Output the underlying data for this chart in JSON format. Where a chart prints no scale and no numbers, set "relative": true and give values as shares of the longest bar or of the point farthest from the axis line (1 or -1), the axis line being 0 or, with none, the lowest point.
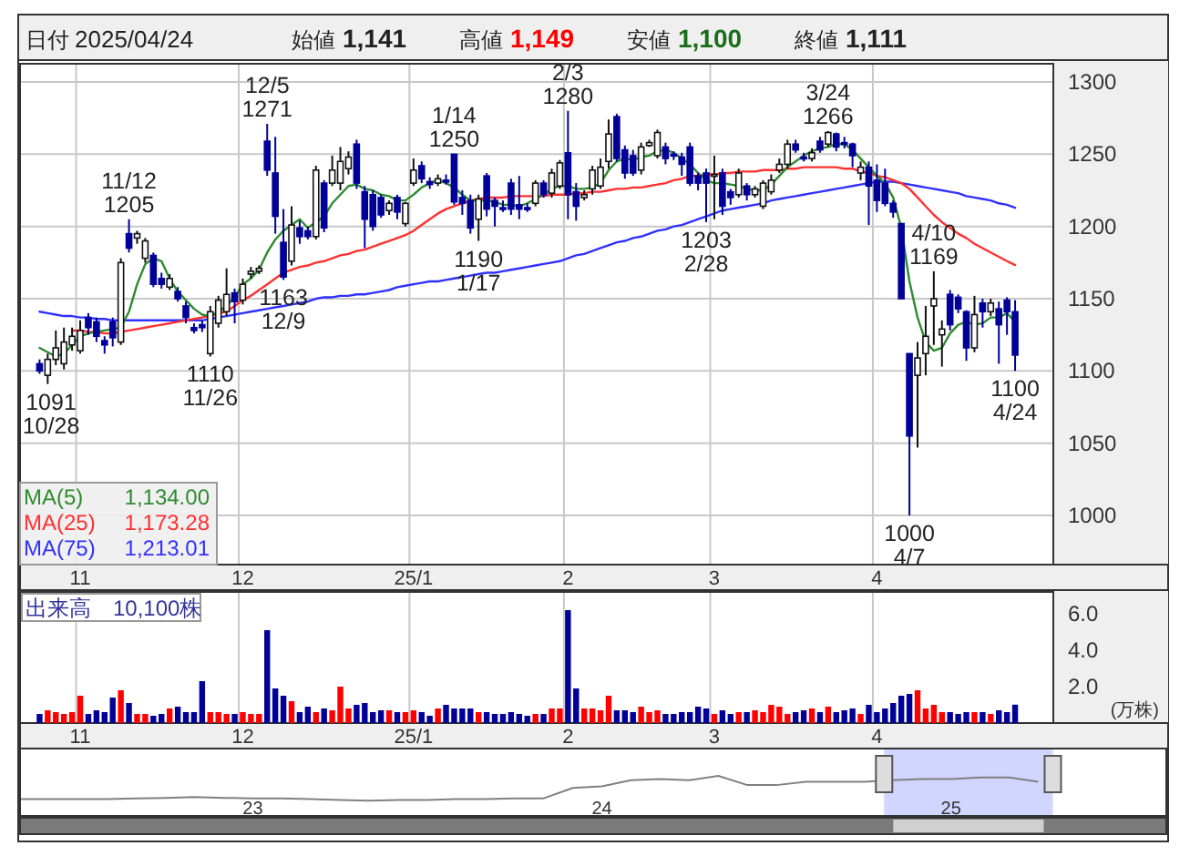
{
  "chart_data": [
    {
      "type": "candlestick",
      "title": "日付 2025/04/24 始値 1,141 高値 1,149 安値 1,100 終値 1,111",
      "categories": [
        null,
        null,
        null,
        null,
        null,
        "11",
        null,
        null,
        null,
        null,
        null,
        null,
        null,
        null,
        null,
        null,
        null,
        null,
        null,
        null,
        null,
        null,
        null,
        null,
        null,
        "12",
        null,
        null,
        null,
        null,
        null,
        null,
        null,
        null,
        null,
        null,
        null,
        null,
        null,
        null,
        null,
        null,
        null,
        null,
        null,
        null,
        "25/1",
        null,
        null,
        null,
        null,
        null,
        null,
        null,
        null,
        null,
        null,
        null,
        null,
        null,
        null,
        null,
        null,
        null,
        null,
        "2",
        null,
        null,
        null,
        null,
        null,
        null,
        null,
        null,
        null,
        null,
        null,
        null,
        null,
        null,
        null,
        null,
        null,
        "3",
        null,
        null,
        null,
        null,
        null,
        null,
        null,
        null,
        null,
        null,
        null,
        null,
        null,
        null,
        null,
        null,
        null,
        null,
        null,
        "4",
        null,
        null,
        null,
        null,
        null,
        null,
        null,
        null,
        null,
        null,
        null,
        null,
        null,
        null,
        null,
        null,
        null
      ],
      "ohlc": [
        [
          1105,
          1108,
          1098,
          1100
        ],
        [
          1097,
          1112,
          1091,
          1108
        ],
        [
          1108,
          1128,
          1104,
          1116
        ],
        [
          1105,
          1130,
          1101,
          1120
        ],
        [
          1118,
          1130,
          1114,
          1124
        ],
        [
          1114,
          1135,
          1112,
          1128
        ],
        [
          1137,
          1140,
          1125,
          1130
        ],
        [
          1134,
          1137,
          1120,
          1124
        ],
        [
          1121,
          1124,
          1112,
          1118
        ],
        [
          1134,
          1137,
          1117,
          1123
        ],
        [
          1120,
          1178,
          1118,
          1175
        ],
        [
          1195,
          1205,
          1182,
          1185
        ],
        [
          1192,
          1197,
          1188,
          1195
        ],
        [
          1178,
          1192,
          1175,
          1190
        ],
        [
          1180,
          1182,
          1158,
          1160
        ],
        [
          1164,
          1168,
          1157,
          1160
        ],
        [
          1158,
          1167,
          1156,
          1164
        ],
        [
          1155,
          1158,
          1148,
          1150
        ],
        [
          1145,
          1148,
          1133,
          1137
        ],
        [
          1130,
          1133,
          1126,
          1128
        ],
        [
          1132,
          1135,
          1127,
          1130
        ],
        [
          1112,
          1145,
          1110,
          1141
        ],
        [
          1133,
          1152,
          1130,
          1149
        ],
        [
          1141,
          1171,
          1138,
          1153
        ],
        [
          1154,
          1157,
          1133,
          1148
        ],
        [
          1149,
          1164,
          1146,
          1160
        ],
        [
          1167,
          1172,
          1164,
          1169
        ],
        [
          1169,
          1173,
          1167,
          1171
        ],
        [
          1259,
          1271,
          1235,
          1239
        ],
        [
          1237,
          1262,
          1195,
          1207
        ],
        [
          1189,
          1212,
          1163,
          1165
        ],
        [
          1176,
          1214,
          1173,
          1201
        ],
        [
          1199,
          1204,
          1188,
          1193
        ],
        [
          1197,
          1200,
          1191,
          1193
        ],
        [
          1193,
          1242,
          1191,
          1239
        ],
        [
          1230,
          1232,
          1196,
          1199
        ],
        [
          1230,
          1249,
          1228,
          1239
        ],
        [
          1230,
          1255,
          1225,
          1245
        ],
        [
          1240,
          1252,
          1236,
          1248
        ],
        [
          1257,
          1260,
          1226,
          1230
        ],
        [
          1224,
          1228,
          1185,
          1205
        ],
        [
          1222,
          1225,
          1197,
          1200
        ],
        [
          1220,
          1222,
          1206,
          1208
        ],
        [
          1211,
          1218,
          1208,
          1216
        ],
        [
          1220,
          1222,
          1205,
          1210
        ],
        [
          1202,
          1217,
          1200,
          1216
        ],
        [
          1230,
          1247,
          1228,
          1239
        ],
        [
          1242,
          1245,
          1230,
          1233
        ],
        [
          1231,
          1234,
          1226,
          1229
        ],
        [
          1230,
          1236,
          1228,
          1233
        ],
        [
          1232,
          1236,
          1229,
          1231
        ],
        [
          1250,
          1250,
          1215,
          1217
        ],
        [
          1220,
          1225,
          1208,
          1216
        ],
        [
          1218,
          1222,
          1195,
          1199
        ],
        [
          1205,
          1222,
          1190,
          1219
        ],
        [
          1235,
          1237,
          1207,
          1212
        ],
        [
          1218,
          1220,
          1200,
          1214
        ],
        [
          1213,
          1218,
          1210,
          1212
        ],
        [
          1230,
          1233,
          1208,
          1212
        ],
        [
          1215,
          1235,
          1205,
          1212
        ],
        [
          1213,
          1216,
          1210,
          1212
        ],
        [
          1216,
          1232,
          1214,
          1230
        ],
        [
          1230,
          1232,
          1220,
          1222
        ],
        [
          1223,
          1240,
          1220,
          1237
        ],
        [
          1228,
          1246,
          1226,
          1244
        ],
        [
          1251,
          1280,
          1205,
          1222
        ],
        [
          1224,
          1230,
          1204,
          1214
        ],
        [
          1220,
          1225,
          1218,
          1222
        ],
        [
          1226,
          1242,
          1222,
          1239
        ],
        [
          1228,
          1247,
          1226,
          1241
        ],
        [
          1245,
          1274,
          1240,
          1264
        ],
        [
          1276,
          1278,
          1245,
          1247
        ],
        [
          1253,
          1256,
          1233,
          1237
        ],
        [
          1249,
          1253,
          1235,
          1237
        ],
        [
          1239,
          1258,
          1236,
          1255
        ],
        [
          1256,
          1260,
          1255,
          1258
        ],
        [
          1249,
          1267,
          1247,
          1265
        ],
        [
          1255,
          1258,
          1243,
          1247
        ],
        [
          1250,
          1252,
          1246,
          1249
        ],
        [
          1248,
          1251,
          1235,
          1243
        ],
        [
          1255,
          1258,
          1228,
          1230
        ],
        [
          1235,
          1237,
          1225,
          1230
        ],
        [
          1237,
          1240,
          1203,
          1230
        ],
        [
          1235,
          1249,
          1205,
          1236
        ],
        [
          1237,
          1240,
          1208,
          1214
        ],
        [
          1224,
          1226,
          1215,
          1220
        ],
        [
          1222,
          1240,
          1220,
          1237
        ],
        [
          1228,
          1230,
          1218,
          1222
        ],
        [
          1222,
          1228,
          1220,
          1226
        ],
        [
          1214,
          1232,
          1212,
          1230
        ],
        [
          1224,
          1236,
          1222,
          1232
        ],
        [
          1239,
          1247,
          1237,
          1243
        ],
        [
          1243,
          1260,
          1240,
          1257
        ],
        [
          1257,
          1260,
          1251,
          1253
        ],
        [
          1248,
          1251,
          1245,
          1247
        ],
        [
          1247,
          1254,
          1245,
          1251
        ],
        [
          1259,
          1262,
          1251,
          1253
        ],
        [
          1257,
          1266,
          1255,
          1265
        ],
        [
          1264,
          1265,
          1252,
          1255
        ],
        [
          1258,
          1262,
          1254,
          1257
        ],
        [
          1257,
          1258,
          1241,
          1249
        ],
        [
          1237,
          1245,
          1232,
          1241
        ],
        [
          1241,
          1245,
          1201,
          1228
        ],
        [
          1232,
          1243,
          1210,
          1218
        ],
        [
          1230,
          1240,
          1214,
          1216
        ],
        [
          1216,
          1218,
          1206,
          1210
        ],
        [
          1202,
          1202,
          1150,
          1150
        ],
        [
          1112,
          1112,
          1000,
          1055
        ],
        [
          1097,
          1120,
          1047,
          1109
        ],
        [
          1112,
          1145,
          1097,
          1124
        ],
        [
          1145,
          1169,
          1118,
          1150
        ],
        [
          1125,
          1135,
          1103,
          1129
        ],
        [
          1153,
          1156,
          1128,
          1132
        ],
        [
          1151,
          1153,
          1140,
          1143
        ],
        [
          1141,
          1142,
          1107,
          1116
        ],
        [
          1116,
          1152,
          1113,
          1139
        ],
        [
          1147,
          1150,
          1130,
          1141
        ],
        [
          1141,
          1150,
          1138,
          1147
        ],
        [
          1143,
          1148,
          1105,
          1132
        ],
        [
          1149,
          1151,
          1125,
          1141
        ],
        [
          1141,
          1149,
          1100,
          1111
        ]
      ],
      "series": [
        {
          "name": "MA(5)",
          "type": "line",
          "color": "#2e8b2e",
          "values": [
            1116,
            1113,
            1110,
            1112,
            1118,
            1124,
            1126,
            1127,
            1128,
            1129,
            1130,
            1141,
            1160,
            1174,
            1178,
            1176,
            1164,
            1155,
            1149,
            1143,
            1139,
            1138,
            1141,
            1145,
            1151,
            1160,
            1164,
            1170,
            1182,
            1191,
            1197,
            1201,
            1205,
            1199,
            1203,
            1207,
            1216,
            1222,
            1228,
            1229,
            1226,
            1225,
            1222,
            1221,
            1218,
            1218,
            1222,
            1227,
            1230,
            1232,
            1230,
            1227,
            1222,
            1218,
            1218,
            1218,
            1217,
            1215,
            1215,
            1214,
            1216,
            1219,
            1222,
            1226,
            1228,
            1228,
            1226,
            1226,
            1227,
            1230,
            1239,
            1245,
            1247,
            1246,
            1248,
            1249,
            1252,
            1253,
            1251,
            1247,
            1243,
            1237,
            1232,
            1230,
            1230,
            1229,
            1228,
            1226,
            1225,
            1225,
            1229,
            1235,
            1241,
            1245,
            1249,
            1252,
            1254,
            1255,
            1257,
            1257,
            1253,
            1247,
            1241,
            1235,
            1230,
            1220,
            1199,
            1162,
            1137,
            1120,
            1114,
            1116,
            1126,
            1132,
            1134,
            1132,
            1133,
            1137,
            1137,
            1140,
            1134
          ]
        },
        {
          "name": "MA(25)",
          "type": "line",
          "color": "#ff3030",
          "values": [
            null,
            null,
            null,
            null,
            1128,
            1128,
            1127,
            1127,
            1126,
            1126,
            1127,
            1128,
            1129,
            1130,
            1131,
            1132,
            1133,
            1134,
            1135,
            1136,
            1137,
            1138,
            1140,
            1141,
            1145,
            1149,
            1152,
            1156,
            1160,
            1164,
            1168,
            1170,
            1172,
            1173,
            1175,
            1176,
            1178,
            1180,
            1181,
            1183,
            1184,
            1186,
            1188,
            1190,
            1192,
            1194,
            1197,
            1201,
            1205,
            1209,
            1212,
            1214,
            1216,
            1218,
            1219,
            1220,
            1220,
            1220,
            1221,
            1221,
            1221,
            1221,
            1221,
            1222,
            1222,
            1222,
            1223,
            1223,
            1224,
            1224,
            1225,
            1226,
            1226,
            1227,
            1227,
            1228,
            1229,
            1230,
            1232,
            1233,
            1235,
            1235,
            1236,
            1236,
            1237,
            1237,
            1238,
            1238,
            1238,
            1239,
            1239,
            1239,
            1240,
            1240,
            1241,
            1241,
            1241,
            1241,
            1241,
            1240,
            1240,
            1238,
            1237,
            1235,
            1234,
            1232,
            1230,
            1226,
            1220,
            1214,
            1208,
            1203,
            1199,
            1195,
            1192,
            1188,
            1185,
            1182,
            1179,
            1176,
            1173.28
          ]
        },
        {
          "name": "MA(75)",
          "type": "line",
          "color": "#3030ff",
          "values": [
            1141,
            1140,
            1139,
            1138,
            1138,
            1137,
            1137,
            1136,
            1136,
            1135,
            1135,
            1135,
            1135,
            1135,
            1135,
            1135,
            1135,
            1135,
            1135,
            1135,
            1135,
            1136,
            1137,
            1138,
            1139,
            1140,
            1141,
            1142,
            1143,
            1144,
            1145,
            1146,
            1147,
            1148,
            1150,
            1151,
            1151,
            1152,
            1152,
            1153,
            1153,
            1154,
            1155,
            1156,
            1158,
            1159,
            1160,
            1161,
            1162,
            1162,
            1163,
            1164,
            1165,
            1166,
            1167,
            1168,
            1168,
            1169,
            1170,
            1171,
            1172,
            1173,
            1174,
            1175,
            1176,
            1178,
            1180,
            1181,
            1183,
            1185,
            1187,
            1189,
            1190,
            1192,
            1193,
            1195,
            1197,
            1198,
            1200,
            1201,
            1203,
            1205,
            1207,
            1209,
            1211,
            1212,
            1213,
            1214,
            1215,
            1216,
            1218,
            1219,
            1220,
            1221,
            1222,
            1223,
            1224,
            1225,
            1226,
            1227,
            1228,
            1229,
            1230,
            1231,
            1231,
            1231,
            1230,
            1229,
            1228,
            1227,
            1226,
            1225,
            1224,
            1223,
            1221,
            1220,
            1219,
            1218,
            1216,
            1215,
            1213.01
          ]
        }
      ],
      "ylim": [
        966,
        1312.6
      ],
      "yticks": [
        1000,
        1050,
        1100,
        1150,
        1200,
        1250,
        1300
      ],
      "grid": true,
      "legend": "bottom left",
      "annotations": [
        {
          "text": "1091\n10/28",
          "y": 1091
        },
        {
          "text": "11/12\n1205",
          "y": 1205
        },
        {
          "text": "1110\n11/26",
          "y": 1110
        },
        {
          "text": "12/5\n1271",
          "y": 1271
        },
        {
          "text": "1163\n12/9",
          "y": 1163
        },
        {
          "text": "1/14\n1250",
          "y": 1250
        },
        {
          "text": "1190\n1/17",
          "y": 1190
        },
        {
          "text": "2/3\n1280",
          "y": 1280
        },
        {
          "text": "1203\n2/28",
          "y": 1203
        },
        {
          "text": "3/24\n1266",
          "y": 1266
        },
        {
          "text": "1000\n4/7",
          "y": 1000
        },
        {
          "text": "4/10\n1169",
          "y": 1169
        },
        {
          "text": "1100\n4/24",
          "y": 1100
        },
        "1,134.00",
        "1,173.28",
        "1,213.01"
      ]
    },
    {
      "type": "bar",
      "title": "出来高　10,100株",
      "ylabel": "(万株)",
      "categories": [
        null,
        null,
        null,
        null,
        null,
        "11",
        null,
        null,
        null,
        null,
        null,
        null,
        null,
        null,
        null,
        null,
        null,
        null,
        null,
        null,
        null,
        null,
        null,
        null,
        null,
        "12",
        null,
        null,
        null,
        null,
        null,
        null,
        null,
        null,
        null,
        null,
        null,
        null,
        null,
        null,
        null,
        null,
        null,
        null,
        null,
        null,
        "25/1",
        null,
        null,
        null,
        null,
        null,
        null,
        null,
        null,
        null,
        null,
        null,
        null,
        null,
        null,
        null,
        null,
        null,
        null,
        "2",
        null,
        null,
        null,
        null,
        null,
        null,
        null,
        null,
        null,
        null,
        null,
        null,
        null,
        null,
        null,
        null,
        null,
        "3",
        null,
        null,
        null,
        null,
        null,
        null,
        null,
        null,
        null,
        null,
        null,
        null,
        null,
        null,
        null,
        null,
        null,
        null,
        null,
        "4",
        null,
        null,
        null,
        null,
        null,
        null,
        null,
        null,
        null,
        null,
        null,
        null,
        null,
        null,
        null,
        null,
        null
      ],
      "values": [
        0.5,
        0.7,
        0.6,
        0.5,
        0.6,
        1.5,
        0.5,
        0.7,
        0.6,
        1.4,
        1.8,
        1.1,
        0.5,
        0.5,
        0.4,
        0.5,
        0.8,
        0.9,
        0.6,
        0.6,
        2.3,
        0.6,
        0.6,
        0.5,
        0.5,
        0.6,
        0.5,
        0.5,
        5.1,
        1.9,
        1.5,
        1.2,
        0.6,
        0.9,
        0.6,
        0.8,
        0.7,
        2.0,
        0.8,
        1.0,
        1.1,
        0.6,
        0.7,
        0.7,
        0.6,
        0.6,
        0.7,
        0.6,
        0.4,
        0.8,
        1.0,
        0.8,
        0.8,
        0.8,
        0.6,
        0.6,
        0.5,
        0.5,
        0.6,
        0.5,
        0.4,
        0.5,
        0.5,
        0.8,
        0.8,
        6.2,
        1.9,
        0.8,
        0.8,
        0.7,
        1.5,
        0.7,
        0.7,
        0.6,
        0.9,
        0.6,
        0.7,
        0.5,
        0.5,
        0.6,
        0.6,
        0.9,
        0.8,
        0.5,
        0.7,
        0.5,
        0.6,
        0.6,
        0.7,
        0.6,
        1.0,
        0.9,
        0.5,
        0.6,
        0.7,
        0.8,
        0.6,
        0.9,
        0.6,
        0.7,
        0.8,
        0.5,
        1.0,
        0.6,
        0.8,
        1.1,
        1.5,
        1.6,
        1.8,
        0.8,
        1.0,
        0.6,
        0.6,
        0.5,
        0.6,
        0.6,
        0.6,
        0.5,
        0.7,
        0.6,
        1.01
      ],
      "colors": [
        "#000099",
        "#ff0000",
        "#ff0000",
        "#ff0000",
        "#ff0000",
        "#ff0000",
        "#000099",
        "#000099",
        "#000099",
        "#000099",
        "#ff0000",
        "#000099",
        "#ff0000",
        "#ff0000",
        "#000099",
        "#000099",
        "#ff0000",
        "#000099",
        "#000099",
        "#000099",
        "#000099",
        "#ff0000",
        "#ff0000",
        "#ff0000",
        "#000099",
        "#ff0000",
        "#ff0000",
        "#ff0000",
        "#000099",
        "#000099",
        "#000099",
        "#ff0000",
        "#000099",
        "#000099",
        "#ff0000",
        "#000099",
        "#ff0000",
        "#ff0000",
        "#ff0000",
        "#000099",
        "#000099",
        "#000099",
        "#000099",
        "#ff0000",
        "#000099",
        "#ff0000",
        "#ff0000",
        "#000099",
        "#000099",
        "#ff0000",
        "#000099",
        "#000099",
        "#000099",
        "#000099",
        "#ff0000",
        "#000099",
        "#000099",
        "#000099",
        "#000099",
        "#000099",
        "#000099",
        "#ff0000",
        "#000099",
        "#ff0000",
        "#ff0000",
        "#000099",
        "#000099",
        "#ff0000",
        "#ff0000",
        "#ff0000",
        "#ff0000",
        "#000099",
        "#000099",
        "#000099",
        "#ff0000",
        "#ff0000",
        "#ff0000",
        "#000099",
        "#000099",
        "#000099",
        "#000099",
        "#000099",
        "#000099",
        "#ff0000",
        "#000099",
        "#000099",
        "#ff0000",
        "#000099",
        "#ff0000",
        "#ff0000",
        "#ff0000",
        "#ff0000",
        "#ff0000",
        "#000099",
        "#000099",
        "#ff0000",
        "#000099",
        "#ff0000",
        "#000099",
        "#000099",
        "#000099",
        "#ff0000",
        "#000099",
        "#000099",
        "#000099",
        "#000099",
        "#000099",
        "#000099",
        "#ff0000",
        "#ff0000",
        "#ff0000",
        "#ff0000",
        "#000099",
        "#000099",
        "#000099",
        "#ff0000",
        "#000099",
        "#ff0000",
        "#000099",
        "#000099",
        "#000099"
      ],
      "ylim": [
        0,
        7.2
      ],
      "yticks": [
        {
          "value": 2,
          "label": "2.0"
        },
        {
          "value": 4,
          "label": "4.0"
        },
        {
          "value": 6,
          "label": "6.0"
        }
      ],
      "grid": "x"
    },
    {
      "type": "line",
      "relative": true,
      "tick_labels": "x",
      "categories": [
        null,
        null,
        null,
        null,
        null,
        null,
        null,
        null,
        "23",
        null,
        null,
        null,
        null,
        null,
        null,
        null,
        null,
        null,
        null,
        null,
        "24",
        null,
        null,
        null,
        null,
        null,
        null,
        null,
        null,
        null,
        null,
        null,
        "25",
        null,
        null,
        null
      ],
      "series": [
        {
          "color": "#808080",
          "values": [
            0.42,
            0.42,
            0.42,
            0.42,
            0.44,
            0.45,
            0.47,
            0.45,
            0.44,
            0.44,
            0.42,
            0.4,
            0.38,
            0.4,
            0.4,
            0.42,
            0.42,
            0.44,
            0.44,
            0.7,
            0.74,
            0.89,
            0.92,
            0.89,
            1,
            0.77,
            0.77,
            0.85,
            0.85,
            0.85,
            0.89,
            0.92,
            0.92,
            0.96,
            0.96,
            0.85
          ]
        }
      ]
    }
  ]
}
